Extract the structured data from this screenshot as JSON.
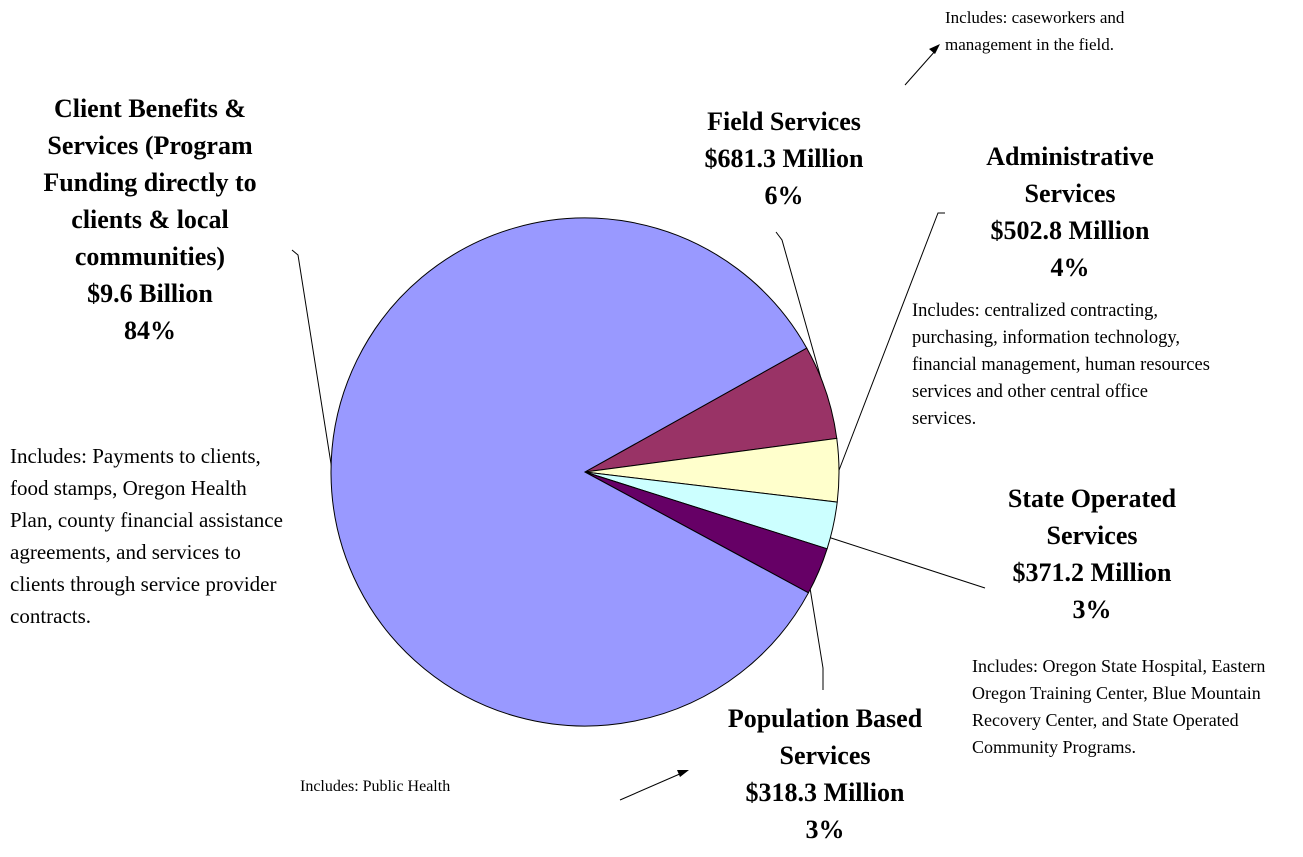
{
  "chart_data": {
    "type": "pie",
    "categories": [
      "Field Services",
      "Administrative Services",
      "State Operated Services",
      "Population Based Services",
      "Client Benefits & Services (Program Funding directly to clients & local communities)"
    ],
    "values": [
      6,
      4,
      3,
      3,
      84
    ],
    "value_labels": [
      "6%",
      "4%",
      "3%",
      "3%",
      "84%"
    ],
    "amount_labels": [
      "$681.3 Million",
      "$502.8 Million",
      "$371.2 Million",
      "$318.3 Million",
      "$9.6 Billion"
    ],
    "notes": [
      "Includes: caseworkers and management in the field.",
      "Includes: centralized contracting, purchasing, information technology, financial management, human resources services and other central office services.",
      "Includes: Oregon State Hospital, Eastern Oregon Training Center, Blue Mountain Recovery Center, and State Operated Community Programs.",
      "Includes: Public Health",
      "Includes:  Payments to clients, food stamps, Oregon Health Plan, county financial assistance agreements, and services to clients through service provider contracts."
    ],
    "colors": [
      "#993366",
      "#ffffcc",
      "#ccffff",
      "#660066",
      "#9999ff"
    ]
  }
}
